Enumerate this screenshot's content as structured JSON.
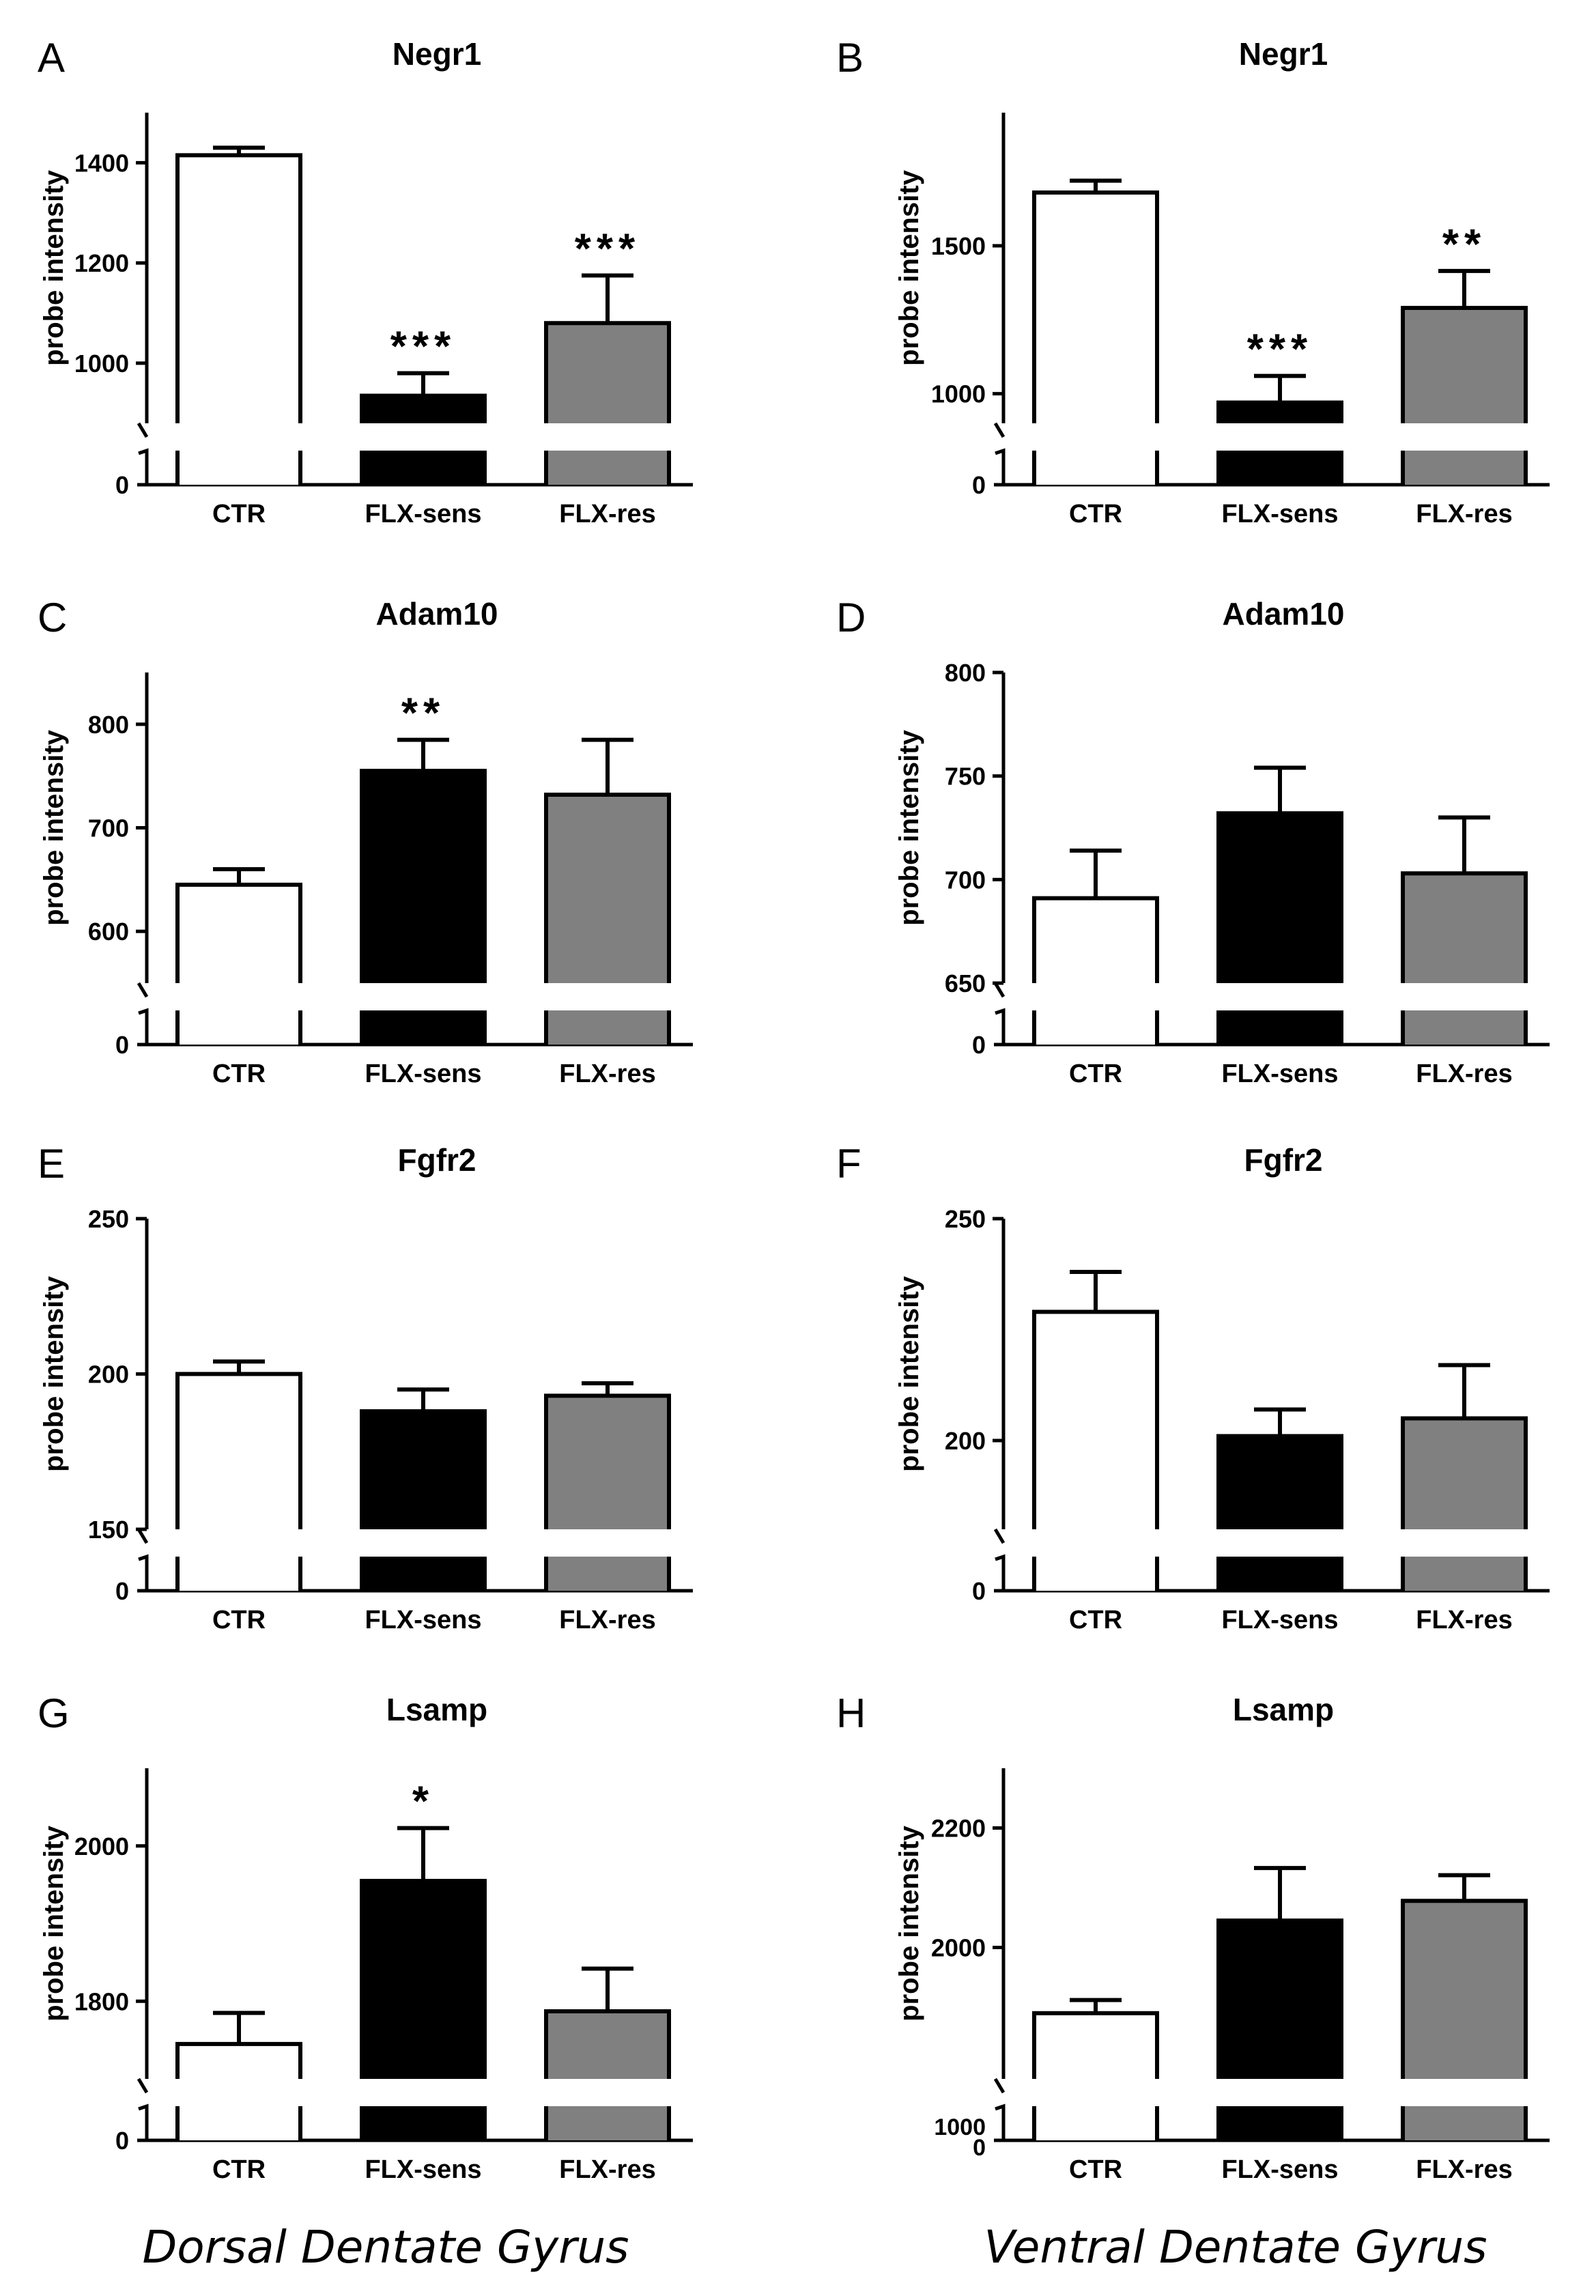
{
  "figure": {
    "footer_left": "Dorsal Dentate Gyrus",
    "footer_right": "Ventral Dentate Gyrus"
  },
  "colors": {
    "CTR": "#ffffff",
    "FLX-sens": "#000000",
    "FLX-res": "#808080"
  },
  "chart_data": [
    {
      "panel": "A",
      "type": "bar",
      "title": "Negr1",
      "ylabel": "probe intensity",
      "categories": [
        "CTR",
        "FLX-sens",
        "FLX-res"
      ],
      "values": [
        1415,
        935,
        1080
      ],
      "errors": [
        15,
        45,
        95
      ],
      "significance": [
        "",
        "***",
        "***"
      ],
      "ylim": [
        880,
        1500
      ],
      "yticks": [
        1000,
        1200,
        1400
      ],
      "zero_tick": "0"
    },
    {
      "panel": "B",
      "type": "bar",
      "title": "Negr1",
      "ylabel": "probe intensity",
      "categories": [
        "CTR",
        "FLX-sens",
        "FLX-res"
      ],
      "values": [
        1680,
        970,
        1290
      ],
      "errors": [
        40,
        90,
        125
      ],
      "significance": [
        "",
        "***",
        "**"
      ],
      "ylim": [
        900,
        1950
      ],
      "yticks": [
        1000,
        1500
      ],
      "zero_tick": "0"
    },
    {
      "panel": "C",
      "type": "bar",
      "title": "Adam10",
      "ylabel": "probe intensity",
      "categories": [
        "CTR",
        "FLX-sens",
        "FLX-res"
      ],
      "values": [
        645,
        755,
        732
      ],
      "errors": [
        15,
        30,
        53
      ],
      "significance": [
        "",
        "**",
        ""
      ],
      "ylim": [
        550,
        850
      ],
      "yticks": [
        600,
        700,
        800
      ],
      "zero_tick": "0"
    },
    {
      "panel": "D",
      "type": "bar",
      "title": "Adam10",
      "ylabel": "probe intensity",
      "categories": [
        "CTR",
        "FLX-sens",
        "FLX-res"
      ],
      "values": [
        691,
        732,
        703
      ],
      "errors": [
        23,
        22,
        27
      ],
      "significance": [
        "",
        "",
        ""
      ],
      "ylim": [
        650,
        800
      ],
      "yticks": [
        650,
        700,
        750,
        800
      ],
      "zero_tick": "0"
    },
    {
      "panel": "E",
      "type": "bar",
      "title": "Fgfr2",
      "ylabel": "probe intensity",
      "categories": [
        "CTR",
        "FLX-sens",
        "FLX-res"
      ],
      "values": [
        200,
        188,
        193
      ],
      "errors": [
        4,
        7,
        4
      ],
      "significance": [
        "",
        "",
        ""
      ],
      "ylim": [
        150,
        250
      ],
      "yticks": [
        150,
        200,
        250
      ],
      "zero_tick": "0"
    },
    {
      "panel": "F",
      "type": "bar",
      "title": "Fgfr2",
      "ylabel": "probe intensity",
      "categories": [
        "CTR",
        "FLX-sens",
        "FLX-res"
      ],
      "values": [
        229,
        201,
        205
      ],
      "errors": [
        9,
        6,
        12
      ],
      "significance": [
        "",
        "",
        ""
      ],
      "ylim": [
        180,
        250
      ],
      "yticks": [
        200,
        250
      ],
      "zero_tick": "0"
    },
    {
      "panel": "G",
      "type": "bar",
      "title": "Lsamp",
      "ylabel": "probe intensity",
      "categories": [
        "CTR",
        "FLX-sens",
        "FLX-res"
      ],
      "values": [
        1745,
        1955,
        1787
      ],
      "errors": [
        40,
        68,
        55
      ],
      "significance": [
        "",
        "*",
        ""
      ],
      "ylim": [
        1700,
        2100
      ],
      "yticks": [
        1800,
        2000
      ],
      "zero_tick": "0"
    },
    {
      "panel": "H",
      "type": "bar",
      "title": "Lsamp",
      "ylabel": "probe intensity",
      "categories": [
        "CTR",
        "FLX-sens",
        "FLX-res"
      ],
      "values": [
        1890,
        2045,
        2078
      ],
      "errors": [
        22,
        88,
        43
      ],
      "significance": [
        "",
        "",
        ""
      ],
      "ylim": [
        1780,
        2300
      ],
      "yticks": [
        2000,
        2200
      ],
      "zero_tick": "1000 0"
    }
  ]
}
